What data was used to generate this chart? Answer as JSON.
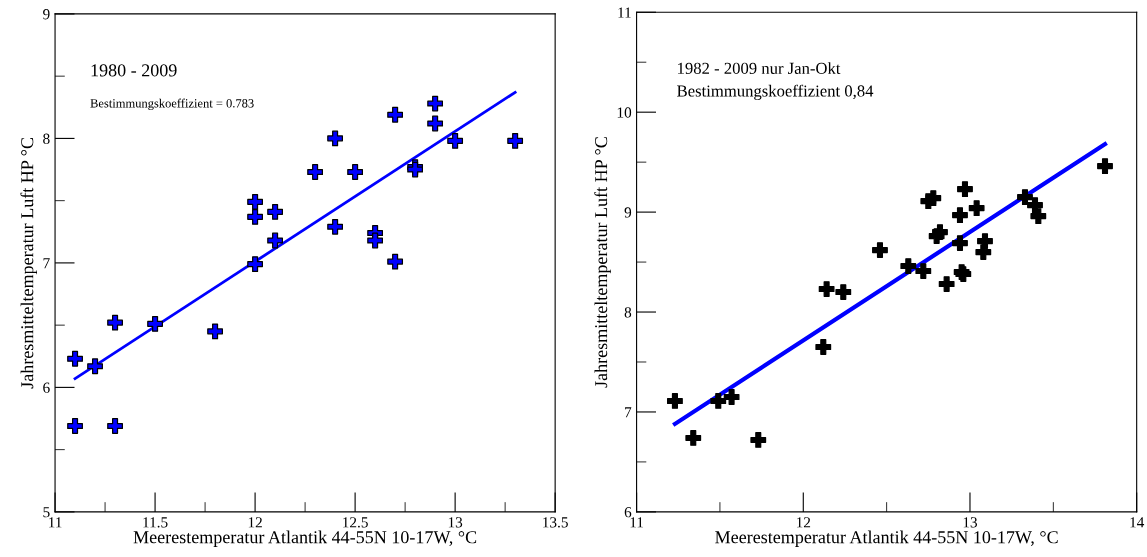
{
  "chart_data": [
    {
      "type": "scatter",
      "xlabel": "Meerestemperatur Atlantik 44-55N 10-17W, °C",
      "ylabel": "Jahresmitteltemperatur Luft HP °C",
      "annotations": [
        "1980 - 2009",
        "Bestimmungskoeffizient = 0.783"
      ],
      "xlim": [
        11,
        13.5
      ],
      "xticks": [
        11,
        11.5,
        12,
        12.5,
        13,
        13.5
      ],
      "ylim": [
        5,
        9
      ],
      "yticks": [
        5,
        6,
        7,
        8,
        9
      ],
      "series": [
        {
          "marker": "cross",
          "color": "#0000ff",
          "x": [
            11.1,
            11.1,
            11.2,
            11.3,
            11.3,
            11.5,
            11.8,
            12.0,
            12.0,
            12.0,
            12.1,
            12.1,
            12.3,
            12.4,
            12.4,
            12.5,
            12.6,
            12.6,
            12.7,
            12.7,
            12.8,
            12.8,
            12.9,
            12.9,
            13.0,
            13.3
          ],
          "values": [
            6.23,
            5.69,
            6.17,
            6.52,
            5.69,
            6.51,
            6.45,
            7.49,
            7.37,
            6.99,
            7.41,
            7.18,
            7.73,
            8.0,
            7.29,
            7.73,
            7.24,
            7.18,
            8.19,
            7.01,
            7.77,
            7.75,
            8.28,
            8.12,
            7.98,
            7.98
          ]
        },
        {
          "type": "line",
          "color": "#0000ff",
          "x": [
            11.1,
            13.3
          ],
          "values": [
            6.07,
            8.37
          ]
        }
      ]
    },
    {
      "type": "scatter",
      "xlabel": "Meerestemperatur Atlantik 44-55N 10-17W, °C",
      "ylabel": "Jahresmitteltemperatur Luft HP °C",
      "annotations": [
        "1982 - 2009 nur Jan-Okt",
        "Bestimmungskoeffizient 0,84"
      ],
      "xlim": [
        11,
        14
      ],
      "xticks": [
        11,
        12,
        13,
        14
      ],
      "ylim": [
        6,
        11
      ],
      "yticks": [
        6,
        7,
        8,
        9,
        10,
        11
      ],
      "series": [
        {
          "marker": "cross",
          "color": "#000000",
          "x": [
            11.23,
            11.34,
            11.49,
            11.57,
            11.73,
            12.12,
            12.14,
            12.24,
            12.46,
            12.63,
            12.72,
            12.75,
            12.78,
            12.8,
            12.82,
            12.86,
            12.94,
            12.94,
            12.95,
            12.96,
            12.97,
            13.04,
            13.09,
            13.08,
            13.33,
            13.39,
            13.41,
            13.81
          ],
          "values": [
            7.11,
            6.74,
            7.11,
            7.15,
            6.72,
            7.65,
            8.23,
            8.2,
            8.62,
            8.46,
            8.41,
            9.11,
            9.14,
            8.76,
            8.8,
            8.28,
            8.69,
            8.97,
            8.4,
            8.38,
            9.23,
            9.04,
            8.71,
            8.6,
            9.15,
            9.07,
            8.96,
            9.46
          ]
        },
        {
          "type": "line",
          "color": "#0000ff",
          "x": [
            11.23,
            13.81
          ],
          "values": [
            6.88,
            9.68
          ]
        }
      ]
    }
  ]
}
